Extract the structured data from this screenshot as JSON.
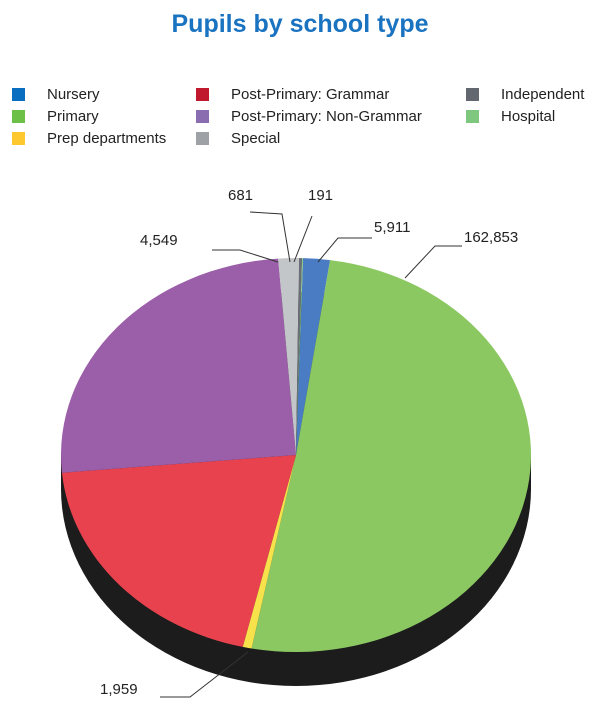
{
  "chart_data": {
    "type": "pie",
    "title": "Pupils by school type",
    "legend_position": "top",
    "slices": [
      {
        "name": "Nursery",
        "value": 5911,
        "label": "5,911",
        "color": "#4a7cc4"
      },
      {
        "name": "Primary",
        "value": 162853,
        "label": "162,853",
        "color": "#8cc862"
      },
      {
        "name": "Prep departments",
        "value": 1959,
        "label": "1,959",
        "color": "#f7e24c"
      },
      {
        "name": "Post-Primary: Grammar",
        "value": 64000,
        "label": "",
        "color": "#e8424f"
      },
      {
        "name": "Post-Primary: Non-Grammar",
        "value": 81000,
        "label": "",
        "color": "#9b5ea8"
      },
      {
        "name": "Special",
        "value": 4549,
        "label": "4,549",
        "color": "#c3c6c8"
      },
      {
        "name": "Independent",
        "value": 681,
        "label": "681",
        "color": "#6b7078"
      },
      {
        "name": "Hospital",
        "value": 191,
        "label": "191",
        "color": "#7ec77e"
      }
    ],
    "legend_colors": [
      "#0a6ec0",
      "#6cbf47",
      "#fcc82e",
      "#c0192e",
      "#8a6db0",
      "#9ea2a6",
      "#636870",
      "#7ec77e"
    ]
  }
}
